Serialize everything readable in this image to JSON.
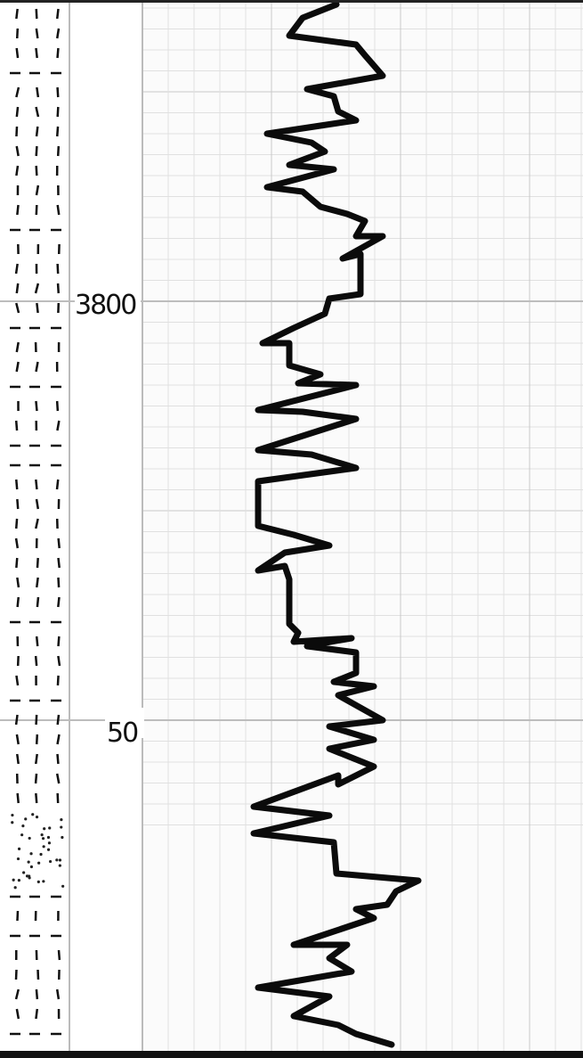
{
  "depth_labels": [
    "3800",
    "50"
  ]
}
